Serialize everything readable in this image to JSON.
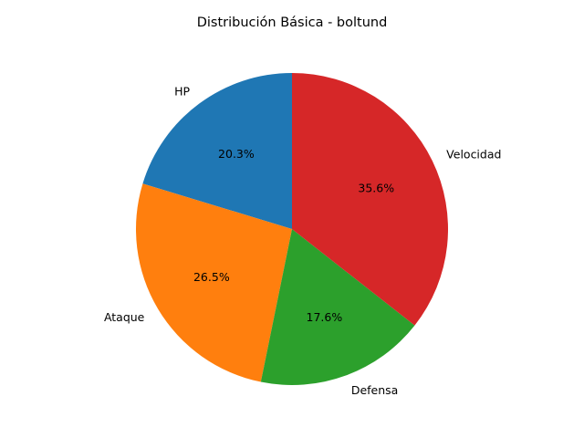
{
  "chart_data": {
    "type": "pie",
    "title": "Distribución Básica - boltund",
    "categories": [
      "HP",
      "Ataque",
      "Defensa",
      "Velocidad"
    ],
    "values": [
      20.3,
      26.5,
      17.6,
      35.6
    ],
    "percent_labels": [
      "20.3%",
      "26.5%",
      "17.6%",
      "35.6%"
    ],
    "colors": [
      "#1f77b4",
      "#ff7f0e",
      "#2ca02c",
      "#d62728"
    ],
    "start_angle_deg": 90,
    "direction": "counterclockwise",
    "legend": "none"
  }
}
